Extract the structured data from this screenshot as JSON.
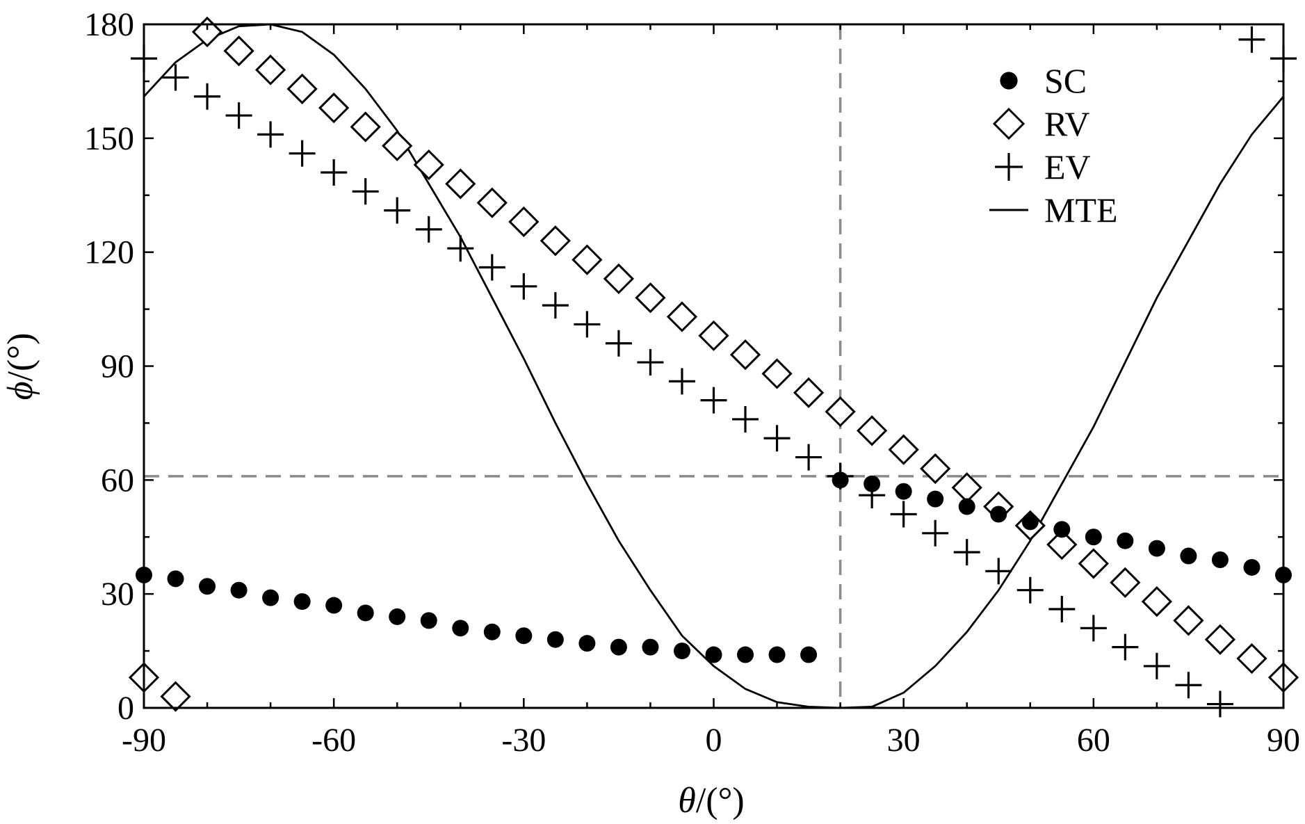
{
  "chart_data": {
    "type": "scatter",
    "xlabel_symbol": "θ",
    "xlabel_unit": "/(°)",
    "ylabel_symbol": "ϕ",
    "ylabel_unit": "/(°)",
    "xlim": [
      -90,
      90
    ],
    "ylim": [
      0,
      180
    ],
    "xticks": [
      -90,
      -60,
      -30,
      0,
      30,
      60,
      90
    ],
    "xtick_labels": [
      "-90",
      "-60",
      "-30",
      "0",
      "30",
      "60",
      "90"
    ],
    "yticks": [
      0,
      30,
      60,
      90,
      120,
      150,
      180
    ],
    "ytick_labels": [
      "0",
      "30",
      "60",
      "90",
      "120",
      "150",
      "180"
    ],
    "reference_lines": {
      "vertical_x": 20,
      "horizontal_y": 61
    },
    "legend_position": "top-right",
    "series": [
      {
        "name": "SC",
        "marker": "filled-circle",
        "x": [
          -90,
          -85,
          -80,
          -75,
          -70,
          -65,
          -60,
          -55,
          -50,
          -45,
          -40,
          -35,
          -30,
          -25,
          -20,
          -15,
          -10,
          -5,
          0,
          5,
          10,
          15,
          20,
          25,
          30,
          35,
          40,
          45,
          50,
          55,
          60,
          65,
          70,
          75,
          80,
          85,
          90
        ],
        "y": [
          35,
          34,
          32,
          31,
          29,
          28,
          27,
          25,
          24,
          23,
          21,
          20,
          19,
          18,
          17,
          16,
          16,
          15,
          14,
          14,
          14,
          14,
          60,
          59,
          57,
          55,
          53,
          51,
          49,
          47,
          45,
          44,
          42,
          40,
          39,
          37,
          35
        ]
      },
      {
        "name": "RV",
        "marker": "open-diamond",
        "x": [
          -90,
          -85,
          -80,
          -75,
          -70,
          -65,
          -60,
          -55,
          -50,
          -45,
          -40,
          -35,
          -30,
          -25,
          -20,
          -15,
          -10,
          -5,
          0,
          5,
          10,
          15,
          20,
          25,
          30,
          35,
          40,
          45,
          50,
          55,
          60,
          65,
          70,
          75,
          80,
          85,
          90
        ],
        "y": [
          8,
          3,
          178,
          173,
          168,
          163,
          158,
          153,
          148,
          143,
          138,
          133,
          128,
          123,
          118,
          113,
          108,
          103,
          98,
          93,
          88,
          83,
          78,
          73,
          68,
          63,
          58,
          53,
          48,
          43,
          38,
          33,
          28,
          23,
          18,
          13,
          8
        ]
      },
      {
        "name": "EV",
        "marker": "plus",
        "x": [
          -90,
          -85,
          -80,
          -75,
          -70,
          -65,
          -60,
          -55,
          -50,
          -45,
          -40,
          -35,
          -30,
          -25,
          -20,
          -15,
          -10,
          -5,
          0,
          5,
          10,
          15,
          20,
          25,
          30,
          35,
          40,
          45,
          50,
          55,
          60,
          65,
          70,
          75,
          80,
          85,
          90
        ],
        "y": [
          171,
          166,
          161,
          156,
          151,
          146,
          141,
          136,
          131,
          126,
          121,
          116,
          111,
          106,
          101,
          96,
          91,
          86,
          81,
          76,
          71,
          66,
          61,
          56,
          51,
          46,
          41,
          36,
          31,
          26,
          21,
          16,
          11,
          6,
          1,
          176,
          171
        ]
      },
      {
        "name": "MTE",
        "marker": "line",
        "x": [
          -90,
          -85,
          -80,
          -75,
          -70,
          -65,
          -60,
          -55,
          -50,
          -45,
          -40,
          -35,
          -30,
          -25,
          -20,
          -15,
          -10,
          -5,
          0,
          5,
          10,
          15,
          20,
          25,
          30,
          35,
          40,
          45,
          50,
          55,
          60,
          65,
          70,
          75,
          80,
          85,
          90
        ],
        "y": [
          161,
          170,
          176,
          179.5,
          180,
          178,
          172,
          163,
          152,
          138,
          124,
          108,
          92,
          75,
          59,
          44,
          31,
          19,
          11,
          5,
          1.5,
          0.3,
          0,
          0.3,
          4,
          11,
          20,
          31,
          44,
          59,
          74,
          91,
          108,
          123,
          138,
          151,
          161
        ]
      }
    ]
  }
}
